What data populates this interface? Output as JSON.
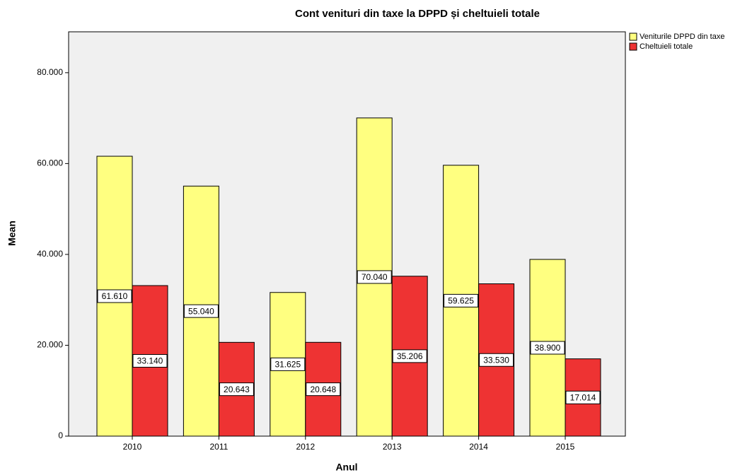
{
  "chart_data": {
    "type": "bar",
    "title": "Cont venituri din taxe la DPPD și cheltuieli totale",
    "x_label": "Anul",
    "y_label": "Mean",
    "categories": [
      "2010",
      "2011",
      "2012",
      "2013",
      "2014",
      "2015"
    ],
    "series": [
      {
        "name": "Veniturile DPPD din taxe",
        "color": "#ffff80",
        "values": [
          61610,
          55040,
          31625,
          70040,
          59625,
          38900
        ],
        "value_labels": [
          "61.610",
          "55.040",
          "31.625",
          "70.040",
          "59.625",
          "38.900"
        ]
      },
      {
        "name": "Cheltuieli totale",
        "color": "#ee3333",
        "values": [
          33140,
          20643,
          20648,
          35206,
          33530,
          17014
        ],
        "value_labels": [
          "33.140",
          "20.643",
          "20.648",
          "35.206",
          "33.530",
          "17.014"
        ]
      }
    ],
    "ylim": [
      0,
      89000
    ],
    "yticks": [
      0,
      {
        "value": 20000,
        "label": "20.000"
      },
      {
        "value": 40000,
        "label": "40.000"
      },
      {
        "value": 60000,
        "label": "60.000"
      },
      {
        "value": 80000,
        "label": "80.000"
      }
    ],
    "legend": "top-right"
  }
}
